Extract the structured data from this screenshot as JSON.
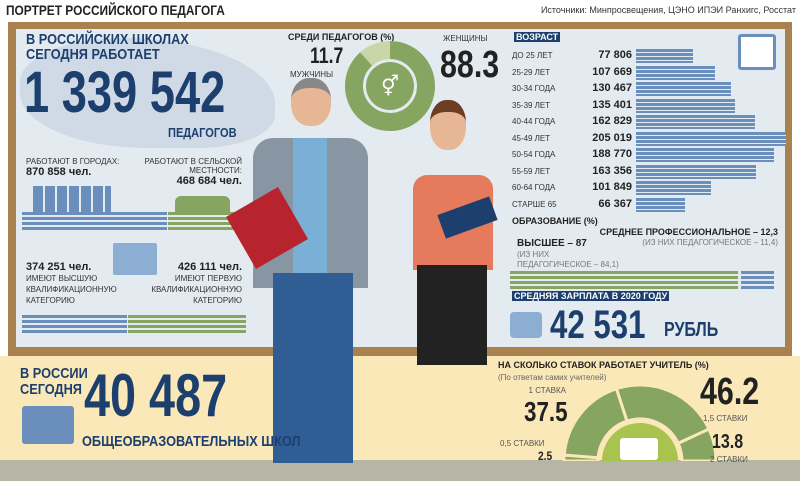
{
  "header": {
    "title": "ПОРТРЕТ РОССИЙСКОГО ПЕДАГОГА",
    "source": "Источники: Минпросвещения, ЦЭНО ИПЭИ Ранхигс, Росстат"
  },
  "total": {
    "line1": "В РОССИЙСКИХ ШКОЛАХ",
    "line2": "СЕГОДНЯ РАБОТАЕТ",
    "number": "1 339 542",
    "unit": "ПЕДАГОГОВ"
  },
  "city": {
    "label": "РАБОТАЮТ В ГОРОДАХ:",
    "value": "870 858 чел."
  },
  "rural": {
    "label1": "РАБОТАЮТ В СЕЛЬСКОЙ",
    "label2": "МЕСТНОСТИ:",
    "value": "468 684 чел."
  },
  "highest_cat": {
    "value": "374 251 чел.",
    "text": [
      "ИМЕЮТ ВЫСШУЮ",
      "КВАЛИФИКАЦИОННУЮ",
      "КАТЕГОРИЮ"
    ]
  },
  "first_cat": {
    "value": "426 111 чел.",
    "text": [
      "ИМЕЮТ ПЕРВУЮ",
      "КВАЛИФИКАЦИОННУЮ",
      "КАТЕГОРИЮ"
    ]
  },
  "gender": {
    "title": "СРЕДИ ПЕДАГОГОВ (%)",
    "men_value": "11.7",
    "men_label": "МУЖЧИНЫ",
    "women_value": "88.3",
    "women_label": "ЖЕНЩИНЫ",
    "women_share": 88.3,
    "colors": {
      "women": "#86a560",
      "men": "#c9d6a8"
    }
  },
  "age": {
    "title": "ВОЗРАСТ",
    "rows": [
      {
        "label": "ДО 25 ЛЕТ",
        "value": "77 806",
        "n": 77806
      },
      {
        "label": "25-29 ЛЕТ",
        "value": "107 669",
        "n": 107669
      },
      {
        "label": "30-34 ГОДА",
        "value": "130 467",
        "n": 130467
      },
      {
        "label": "35-39 ЛЕТ",
        "value": "135 401",
        "n": 135401
      },
      {
        "label": "40-44 ГОДА",
        "value": "162 829",
        "n": 162829
      },
      {
        "label": "45-49 ЛЕТ",
        "value": "205 019",
        "n": 205019
      },
      {
        "label": "50-54 ГОДА",
        "value": "188 770",
        "n": 188770
      },
      {
        "label": "55-59 ЛЕТ",
        "value": "163 356",
        "n": 163356
      },
      {
        "label": "60-64 ГОДА",
        "value": "101 849",
        "n": 101849
      },
      {
        "label": "СТАРШЕ 65",
        "value": "66 367",
        "n": 66367
      }
    ]
  },
  "education": {
    "title": "ОБРАЗОВАНИЕ (%)",
    "higher": "ВЫСШЕЕ – 87",
    "higher_note1": "(ИЗ НИХ",
    "higher_note2": "ПЕДАГОГИЧЕСКОЕ – 84,1)",
    "secondary": "СРЕДНЕЕ ПРОФЕССИОНАЛЬНОЕ – 12,3",
    "secondary_note": "(ИЗ НИХ ПЕДАГОГИЧЕСКОЕ – 11,4)"
  },
  "salary": {
    "title": "СРЕДНЯЯ ЗАРПЛАТА В 2020 ГОДУ",
    "value": "42 531",
    "unit": "РУБЛЬ"
  },
  "schools": {
    "line1": "В РОССИИ",
    "line2": "СЕГОДНЯ",
    "value": "40 487",
    "label": "ОБЩЕОБРАЗОВАТЕЛЬНЫХ ШКОЛ"
  },
  "rates": {
    "title": "НА СКОЛЬКО СТАВОК РАБОТАЕТ УЧИТЕЛЬ (%)",
    "subtitle": "(По ответам самих учителей)",
    "items": [
      {
        "label": "0,5 СТАВКИ",
        "value": "2.5",
        "n": 2.5
      },
      {
        "label": "1 СТАВКА",
        "value": "37.5",
        "n": 37.5
      },
      {
        "label": "1,5 СТАВКИ",
        "value": "46.2",
        "n": 46.2
      },
      {
        "label": "2 СТАВКИ",
        "value": "13.8",
        "n": 13.8
      }
    ]
  }
}
